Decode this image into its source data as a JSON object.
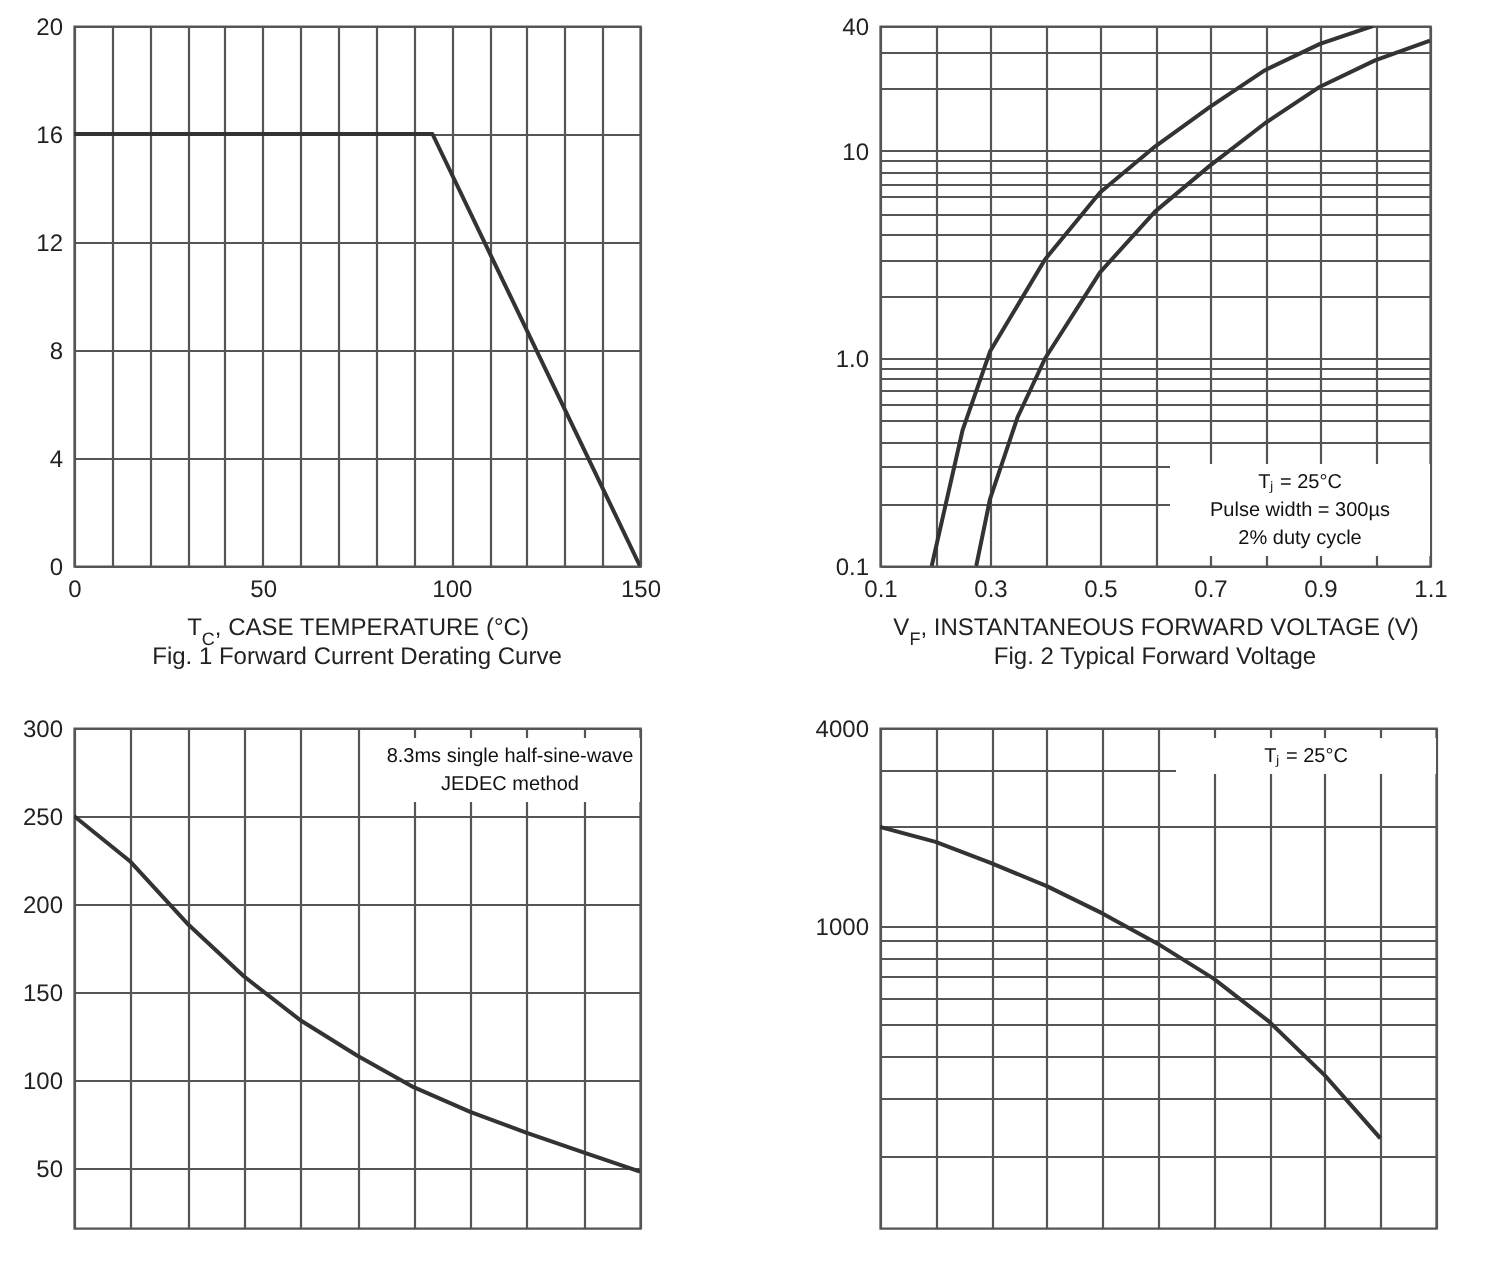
{
  "chart_data": [
    {
      "type": "line",
      "title": "Fig. 1  Forward Current Derating Curve",
      "xlabel": "T$_{C}$, CASE TEMPERATURE (°C)",
      "x": [
        0,
        95,
        150
      ],
      "series": [
        {
          "color": "#333333",
          "values": [
            16,
            16,
            0
          ]
        }
      ],
      "xlim": [
        0,
        150
      ],
      "xticks": [
        0,
        {
          "value": 10,
          "label": null
        },
        {
          "value": 20,
          "label": null
        },
        {
          "value": 30,
          "label": null
        },
        {
          "value": 40,
          "label": null
        },
        50,
        {
          "value": 60,
          "label": null
        },
        {
          "value": 70,
          "label": null
        },
        {
          "value": 80,
          "label": null
        },
        {
          "value": 90,
          "label": null
        },
        100,
        {
          "value": 110,
          "label": null
        },
        {
          "value": 120,
          "label": null
        },
        {
          "value": 130,
          "label": null
        },
        {
          "value": 140,
          "label": null
        },
        150
      ],
      "ylim": [
        0,
        20
      ],
      "yticks": [
        0,
        4,
        8,
        12,
        16,
        20
      ],
      "grid": true
    },
    {
      "type": "line",
      "title": "Fig. 2  Typical Forward Voltage",
      "xlabel": "V$_{F}$, INSTANTANEOUS FORWARD VOLTAGE (V)",
      "log": "y",
      "series": [
        {
          "color": "#333333",
          "x": [
            0.194,
            0.25,
            0.3,
            0.4,
            0.5,
            0.6,
            0.7,
            0.8,
            0.9,
            0.996
          ],
          "values": [
            0.1,
            0.45,
            1.08,
            3.0,
            6.3,
            10.5,
            16.3,
            24.5,
            32.8,
            40
          ]
        },
        {
          "color": "#333333",
          "x": [
            0.275,
            0.3,
            0.35,
            0.4,
            0.5,
            0.6,
            0.7,
            0.8,
            0.9,
            1.0,
            1.1
          ],
          "values": [
            0.1,
            0.21,
            0.52,
            1.0,
            2.6,
            5.1,
            8.5,
            13.6,
            20.4,
            27.3,
            34
          ]
        }
      ],
      "annotations": [
        "Tⱼ = 25°C",
        "Pulse width = 300µs",
        "2% duty cycle"
      ],
      "xlim": [
        0.1,
        1.1
      ],
      "xticks": [
        0.1,
        {
          "value": 0.2,
          "label": null
        },
        0.3,
        {
          "value": 0.4,
          "label": null
        },
        0.5,
        {
          "value": 0.6,
          "label": null
        },
        0.7,
        {
          "value": 0.8,
          "label": null
        },
        0.9,
        {
          "value": 1.0,
          "label": null
        },
        1.1
      ],
      "ylim": [
        0.1,
        40
      ],
      "yticks": [
        0.1,
        {
          "value": 0.2,
          "label": null
        },
        {
          "value": 0.3,
          "label": null
        },
        {
          "value": 0.4,
          "label": null
        },
        {
          "value": 0.5,
          "label": null
        },
        {
          "value": 0.6,
          "label": null
        },
        {
          "value": 0.7,
          "label": null
        },
        {
          "value": 0.8,
          "label": null
        },
        {
          "value": 0.9,
          "label": null
        },
        {
          "value": 1,
          "label": "1.0"
        },
        {
          "value": 2,
          "label": null
        },
        {
          "value": 3,
          "label": null
        },
        {
          "value": 4,
          "label": null
        },
        {
          "value": 5,
          "label": null
        },
        {
          "value": 6,
          "label": null
        },
        {
          "value": 7,
          "label": null
        },
        {
          "value": 8,
          "label": null
        },
        {
          "value": 9,
          "label": null
        },
        10,
        {
          "value": 20,
          "label": null
        },
        {
          "value": 30,
          "label": null
        },
        40
      ],
      "grid": true
    },
    {
      "type": "line",
      "categories": [
        null,
        null,
        null,
        null,
        null,
        null,
        null,
        null,
        null,
        null,
        null
      ],
      "series": [
        {
          "color": "#333333",
          "values": [
            250,
            224,
            189,
            159,
            134,
            114,
            96,
            82,
            70,
            59,
            48
          ]
        }
      ],
      "annotations": [
        "8.3ms single half-sine-wave",
        "JEDEC method"
      ],
      "ylim": [
        16,
        300
      ],
      "yticks": [
        50,
        100,
        150,
        200,
        250,
        300
      ],
      "tick_labels": "y",
      "grid": true
    },
    {
      "type": "line",
      "categories": [
        null,
        null,
        null,
        null,
        null,
        null,
        null,
        null,
        null,
        null,
        null
      ],
      "log": "y",
      "series": [
        {
          "color": "#333333",
          "values": [
            2000,
            1800,
            1550,
            1320,
            1090,
            880,
            690,
            510,
            350,
            225,
            null
          ]
        }
      ],
      "annotations": [
        "Tⱼ = 25°C"
      ],
      "ylim": [
        120,
        4000
      ],
      "yticks": [
        {
          "value": 200,
          "label": null
        },
        {
          "value": 300,
          "label": null
        },
        {
          "value": 400,
          "label": null
        },
        {
          "value": 500,
          "label": null
        },
        {
          "value": 600,
          "label": null
        },
        {
          "value": 700,
          "label": null
        },
        {
          "value": 800,
          "label": null
        },
        {
          "value": 900,
          "label": null
        },
        1000,
        {
          "value": 2000,
          "label": null
        },
        {
          "value": 3000,
          "label": null
        },
        4000
      ],
      "tick_labels": "y",
      "grid": true
    }
  ]
}
